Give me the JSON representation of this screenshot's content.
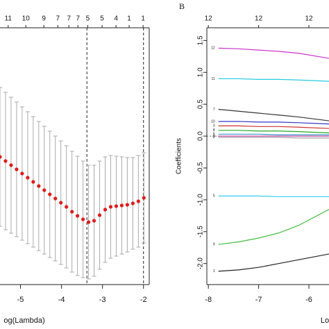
{
  "chart_data": [
    {
      "type": "errorbar",
      "xlabel": "og(Lambda)",
      "xlim": [
        -5.5,
        -1.86
      ],
      "xticks": [
        -5,
        -4,
        -3,
        -2
      ],
      "ylim": [
        0,
        370
      ],
      "color": "#dd1c1c",
      "bar_color": "#aaaaaa",
      "vlines": [
        -3.38,
        -2
      ],
      "top_labels": {
        "x": [
          -5.3,
          -4.87,
          -4.43,
          -4.09,
          -3.82,
          -3.6,
          -3.36,
          -3.01,
          -2.67,
          -2.35,
          -2.01
        ],
        "labels": [
          11,
          10,
          9,
          7,
          7,
          7,
          5,
          5,
          4,
          1,
          1
        ]
      },
      "x": [
        -5.5,
        -5.365,
        -5.23,
        -5.095,
        -4.96,
        -4.825,
        -4.69,
        -4.555,
        -4.42,
        -4.285,
        -4.15,
        -4.015,
        -3.88,
        -3.745,
        -3.61,
        -3.475,
        -3.34,
        -3.205,
        -3.07,
        -2.935,
        -2.8,
        -2.665,
        -2.53,
        -2.395,
        -2.26,
        -2.125,
        -1.99
      ],
      "values": [
        184,
        178,
        172,
        166,
        160,
        154,
        148,
        142,
        136,
        130,
        124,
        118,
        112,
        105,
        99,
        94,
        90,
        92,
        100,
        108,
        112,
        113,
        114,
        115,
        117,
        120,
        125
      ],
      "errors": [
        100,
        99,
        98,
        97,
        96,
        95,
        94,
        93,
        92,
        91,
        90,
        89,
        88,
        87,
        86,
        84,
        82,
        80,
        78,
        76,
        74,
        72,
        70,
        68,
        66,
        66,
        65
      ]
    },
    {
      "type": "line",
      "panel_label": "B",
      "xlabel": "Lo",
      "ylabel": "Coefficients",
      "xlim": [
        -8.03,
        -5.6
      ],
      "xticks": [
        -8,
        -7,
        -6
      ],
      "ylim": [
        -2.33,
        1.7
      ],
      "yticks": [
        {
          "value": -2,
          "label": "-2.0"
        },
        -1.5,
        {
          "value": -1,
          "label": "-1.0"
        },
        -0.5,
        {
          "value": 0,
          "label": "0.0"
        },
        0.5,
        {
          "value": 1,
          "label": "1.0"
        },
        1.5
      ],
      "zero_line": true,
      "top_labels": {
        "x": [
          -8,
          -7,
          -6
        ],
        "labels": [
          12,
          12,
          12
        ]
      },
      "x": [
        -7.8,
        -7.4,
        -7.0,
        -6.6,
        -6.2,
        -5.6
      ],
      "series": [
        {
          "name": "12",
          "color": "#cc33cc",
          "values": [
            1.38,
            1.37,
            1.35,
            1.33,
            1.3,
            1.22
          ]
        },
        {
          "name": "11",
          "color": "#22ccdd",
          "values": [
            0.9,
            0.9,
            0.89,
            0.89,
            0.88,
            0.86
          ]
        },
        {
          "name": "7",
          "color": "#333333",
          "values": [
            0.42,
            0.39,
            0.36,
            0.33,
            0.3,
            0.24
          ]
        },
        {
          "name": "10",
          "color": "#3333cc",
          "values": [
            0.23,
            0.23,
            0.22,
            0.22,
            0.21,
            0.19
          ]
        },
        {
          "name": "3",
          "color": "#cc3333",
          "values": [
            0.16,
            0.16,
            0.15,
            0.15,
            0.14,
            0.12
          ]
        },
        {
          "name": "8",
          "color": "#22aa22",
          "values": [
            0.09,
            0.09,
            0.08,
            0.08,
            0.07,
            0.05
          ]
        },
        {
          "name": "6",
          "color": "#3399cc",
          "values": [
            0.03,
            0.03,
            0.03,
            0.02,
            0.02,
            0.02
          ]
        },
        {
          "name": "4",
          "color": "#cc3399",
          "values": [
            0.0,
            0.0,
            0.0,
            0.0,
            0.0,
            0.0
          ]
        },
        {
          "name": "2",
          "color": "#999999",
          "values": [
            -0.02,
            -0.02,
            -0.02,
            -0.02,
            -0.03,
            -0.03
          ]
        },
        {
          "name": "5",
          "color": "#33ccee",
          "values": [
            -0.94,
            -0.94,
            -0.94,
            -0.95,
            -0.95,
            -0.95
          ]
        },
        {
          "name": "9",
          "color": "#44bb44",
          "values": [
            -1.7,
            -1.66,
            -1.6,
            -1.52,
            -1.4,
            -1.15
          ]
        },
        {
          "name": "1",
          "color": "#222222",
          "values": [
            -2.12,
            -2.1,
            -2.06,
            -2.0,
            -1.94,
            -1.85
          ]
        }
      ]
    }
  ]
}
